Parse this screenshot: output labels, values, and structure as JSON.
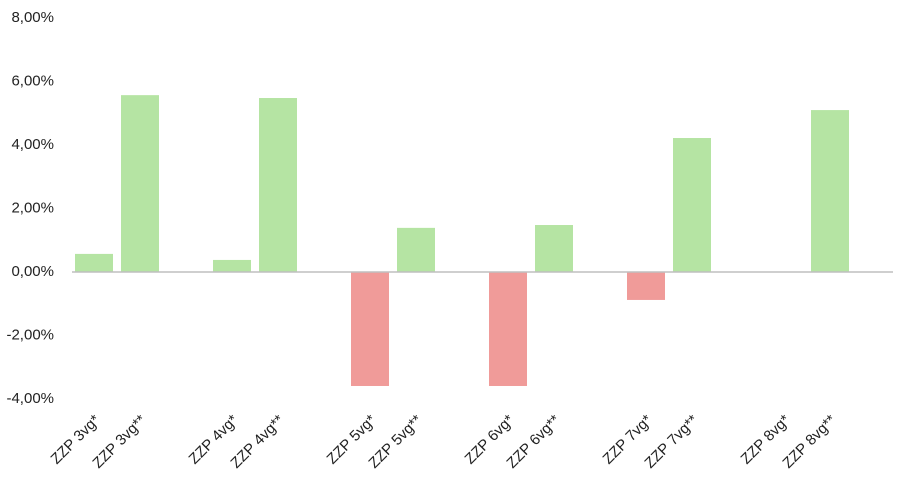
{
  "chart_data": {
    "type": "bar",
    "categories": [
      "ZZP 3vg*",
      "ZZP 3vg**",
      "ZZP 4vg*",
      "ZZP 4vg**",
      "ZZP 5vg*",
      "ZZP 5vg**",
      "ZZP 6vg*",
      "ZZP 6vg**",
      "ZZP 7vg*",
      "ZZP 7vg**",
      "ZZP 8vg*",
      "ZZP 8vg**"
    ],
    "values": [
      0.57,
      5.57,
      0.38,
      5.48,
      -3.59,
      1.39,
      -3.59,
      1.48,
      -0.88,
      4.22,
      null,
      5.1
    ],
    "positive_color": "#b5e4a3",
    "negative_color": "#f09b99",
    "ylim": [
      -4,
      8
    ],
    "yticks": [
      {
        "value": -4,
        "label": "-4,00%"
      },
      {
        "value": -2,
        "label": "-2,00%"
      },
      {
        "value": 0,
        "label": "0,00%"
      },
      {
        "value": 2,
        "label": "2,00%"
      },
      {
        "value": 4,
        "label": "4,00%"
      },
      {
        "value": 6,
        "label": "6,00%"
      },
      {
        "value": 8,
        "label": "8,00%"
      }
    ],
    "grid": false
  }
}
